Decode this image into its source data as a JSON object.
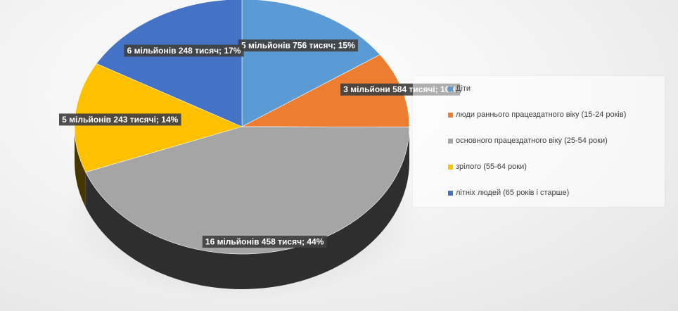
{
  "chart_data": {
    "type": "pie",
    "title": "",
    "categories": [
      "Діти",
      "люди раннього працездатного віку (15-24 років)",
      "основного працездатного віку (25-54 роки)",
      "зрілого (55-64 роки)",
      "літніх людей (65 років і старше)"
    ],
    "values": [
      5756,
      3584,
      16458,
      5243,
      6248
    ],
    "percentages": [
      15,
      10,
      44,
      14,
      17
    ],
    "data_labels": [
      "5 мільйонів 756 тисяч; 15%",
      "3 мільйони 584 тисячі; 10%",
      "16 мільйонів 458 тисяч; 44%",
      "5 мільйонів 243 тисячі; 14%",
      "6 мільйонів 248 тисяч; 17%"
    ],
    "colors": [
      "#5B9BD5",
      "#ED7D31",
      "#A5A5A5",
      "#FFC000",
      "#4472C4"
    ],
    "legend_position": "right"
  }
}
